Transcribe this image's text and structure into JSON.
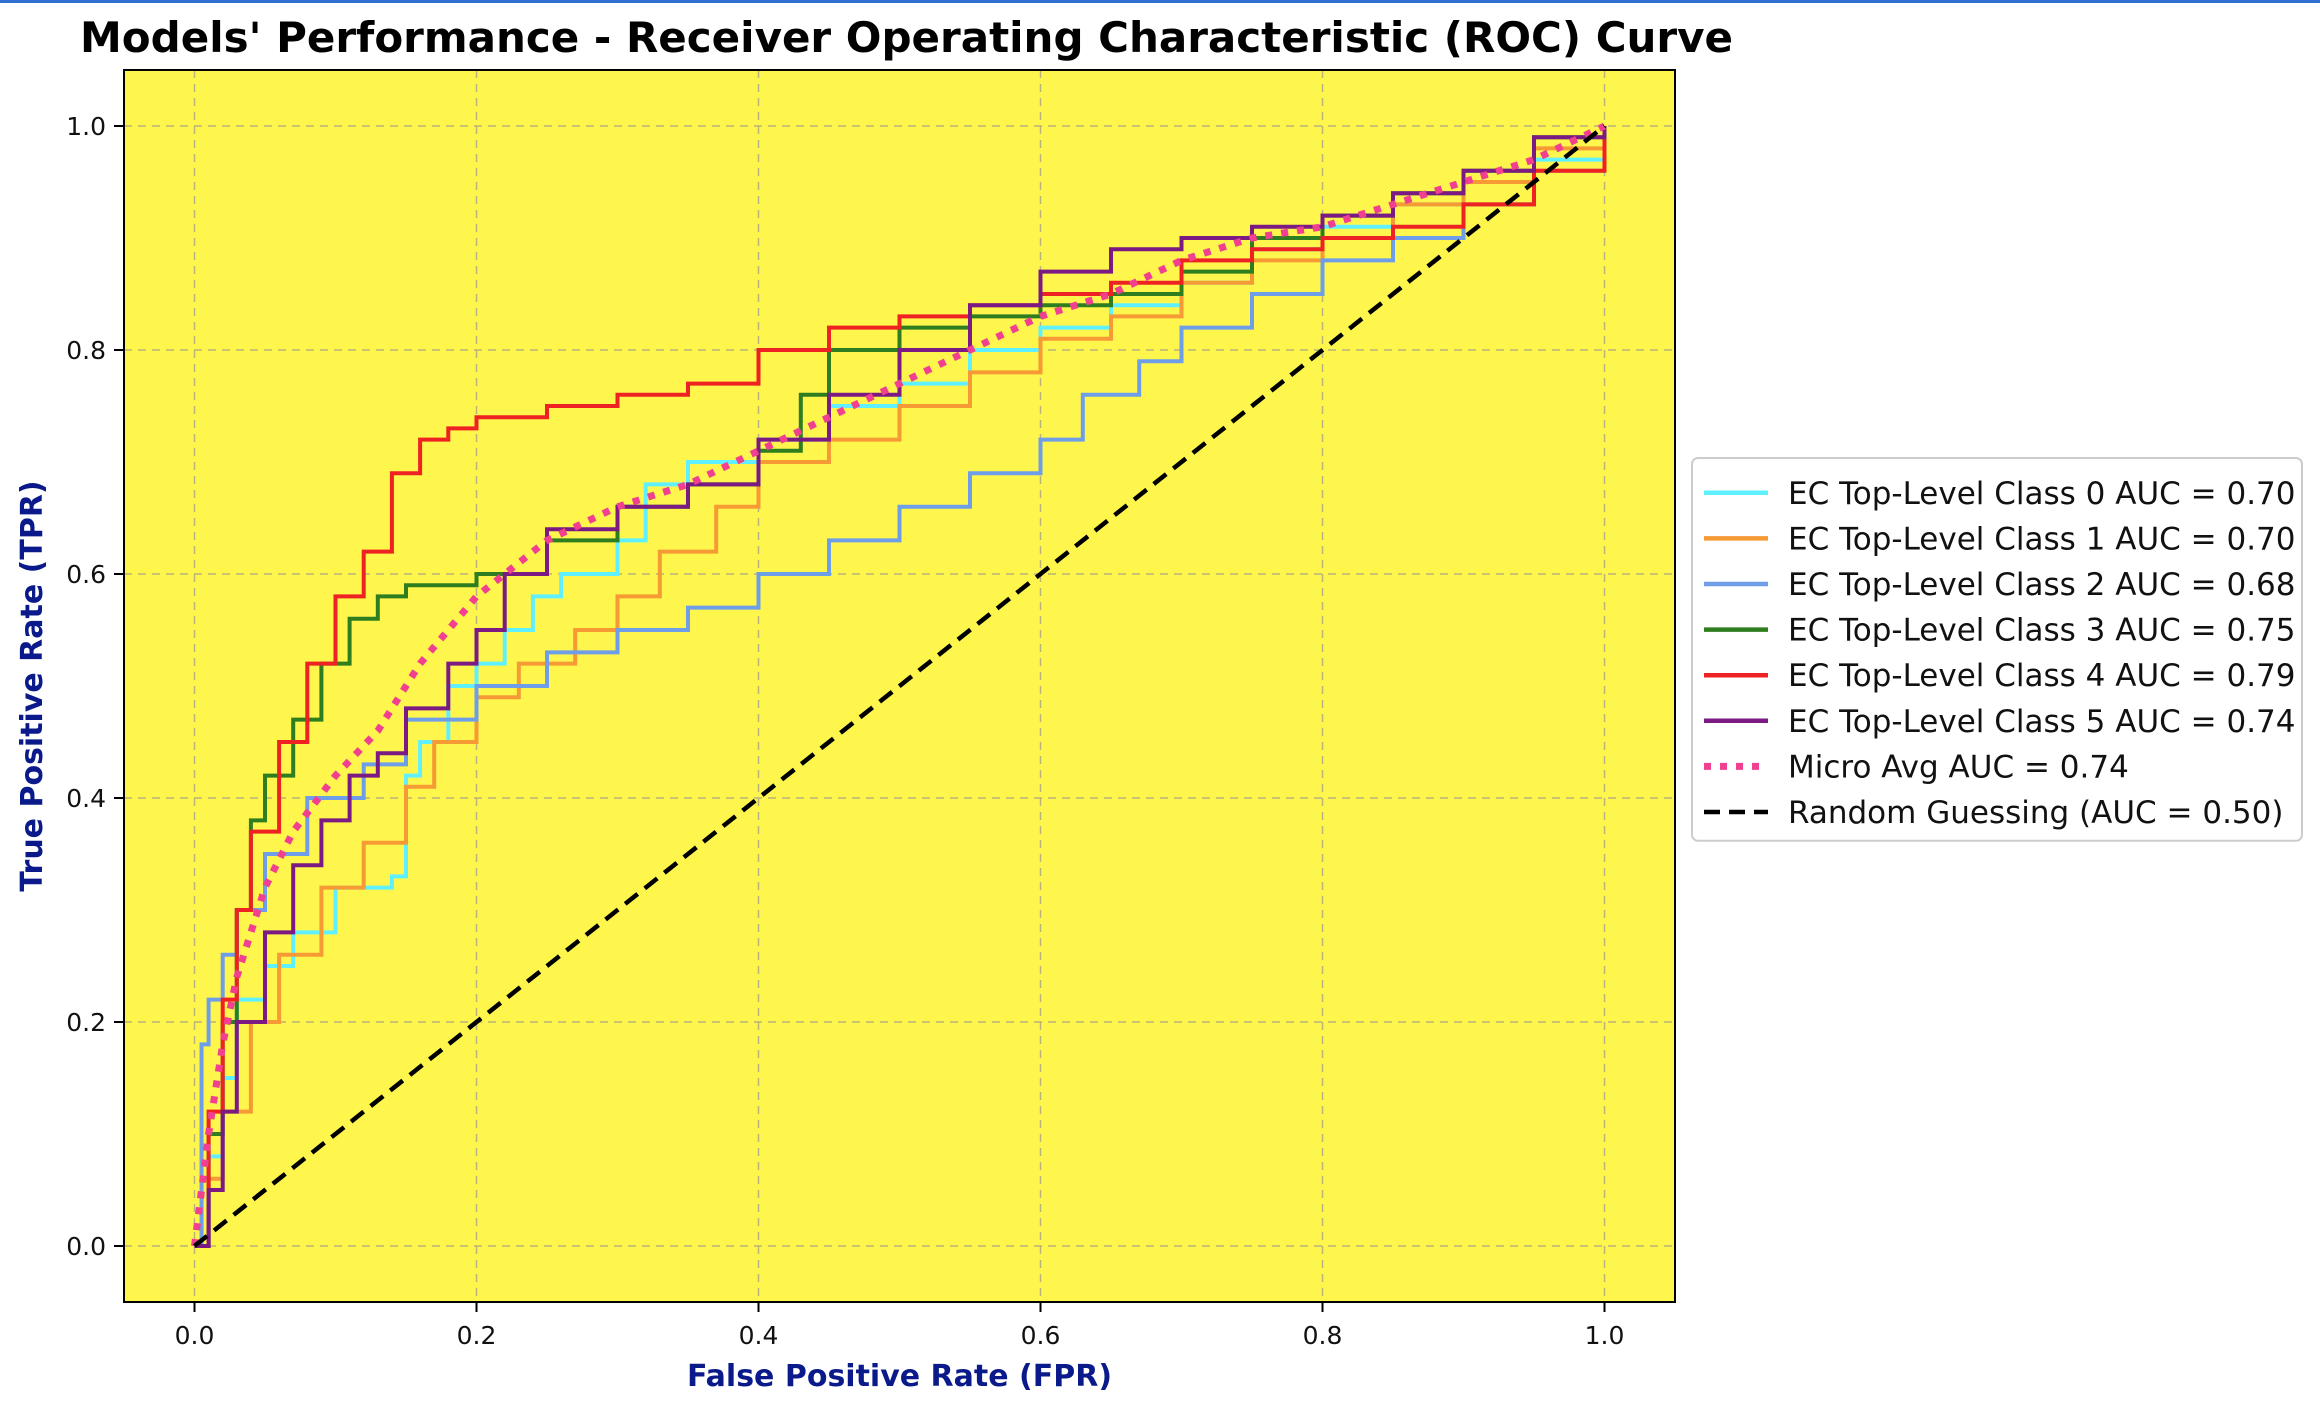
{
  "chart_data": {
    "type": "line",
    "title": "Models' Performance - Receiver Operating Characteristic (ROC) Curve",
    "xlabel": "False Positive Rate (FPR)",
    "ylabel": "True Positive Rate (TPR)",
    "xlim": [
      -0.05,
      1.05
    ],
    "ylim": [
      -0.05,
      1.05
    ],
    "xticks": [
      {
        "value": 0.0,
        "label": "0.0"
      },
      {
        "value": 0.2,
        "label": "0.2"
      },
      {
        "value": 0.4,
        "label": "0.4"
      },
      {
        "value": 0.6,
        "label": "0.6"
      },
      {
        "value": 0.8,
        "label": "0.8"
      },
      {
        "value": 1.0,
        "label": "1.0"
      }
    ],
    "yticks": [
      {
        "value": 0.0,
        "label": "0.0"
      },
      {
        "value": 0.2,
        "label": "0.2"
      },
      {
        "value": 0.4,
        "label": "0.4"
      },
      {
        "value": 0.6,
        "label": "0.6"
      },
      {
        "value": 0.8,
        "label": "0.8"
      },
      {
        "value": 1.0,
        "label": "1.0"
      }
    ],
    "grid": true,
    "legend_position": "outside-right",
    "plot_background": "#fff64d",
    "series": [
      {
        "name": "EC Top-Level Class 0 AUC = 0.70",
        "color": "#5ff0ff",
        "dash": "solid",
        "step": true,
        "x": [
          0.0,
          0.01,
          0.02,
          0.03,
          0.05,
          0.07,
          0.1,
          0.14,
          0.15,
          0.16,
          0.18,
          0.2,
          0.22,
          0.24,
          0.26,
          0.3,
          0.32,
          0.35,
          0.4,
          0.45,
          0.5,
          0.55,
          0.6,
          0.65,
          0.7,
          0.75,
          0.8,
          0.85,
          0.9,
          0.95,
          1.0
        ],
        "y": [
          0.0,
          0.08,
          0.15,
          0.22,
          0.25,
          0.28,
          0.32,
          0.33,
          0.42,
          0.45,
          0.5,
          0.52,
          0.55,
          0.58,
          0.6,
          0.63,
          0.68,
          0.7,
          0.72,
          0.75,
          0.77,
          0.8,
          0.82,
          0.84,
          0.86,
          0.89,
          0.91,
          0.93,
          0.95,
          0.97,
          1.0
        ]
      },
      {
        "name": "EC Top-Level Class 1 AUC = 0.70",
        "color": "#f59a34",
        "dash": "solid",
        "step": true,
        "x": [
          0.0,
          0.01,
          0.02,
          0.04,
          0.06,
          0.09,
          0.12,
          0.15,
          0.17,
          0.2,
          0.23,
          0.27,
          0.3,
          0.33,
          0.37,
          0.4,
          0.45,
          0.5,
          0.55,
          0.6,
          0.65,
          0.7,
          0.75,
          0.8,
          0.85,
          0.9,
          0.95,
          1.0
        ],
        "y": [
          0.0,
          0.06,
          0.12,
          0.2,
          0.26,
          0.32,
          0.36,
          0.41,
          0.45,
          0.49,
          0.52,
          0.55,
          0.58,
          0.62,
          0.66,
          0.7,
          0.72,
          0.75,
          0.78,
          0.81,
          0.83,
          0.86,
          0.88,
          0.9,
          0.93,
          0.95,
          0.98,
          1.0
        ]
      },
      {
        "name": "EC Top-Level Class 2 AUC = 0.68",
        "color": "#6f9ee8",
        "dash": "solid",
        "step": true,
        "x": [
          0.0,
          0.005,
          0.01,
          0.02,
          0.03,
          0.05,
          0.08,
          0.12,
          0.15,
          0.2,
          0.25,
          0.3,
          0.35,
          0.4,
          0.45,
          0.5,
          0.55,
          0.6,
          0.63,
          0.67,
          0.7,
          0.75,
          0.8,
          0.85,
          0.9,
          0.95,
          1.0
        ],
        "y": [
          0.0,
          0.18,
          0.22,
          0.26,
          0.3,
          0.35,
          0.4,
          0.43,
          0.47,
          0.5,
          0.53,
          0.55,
          0.57,
          0.6,
          0.63,
          0.66,
          0.69,
          0.72,
          0.76,
          0.79,
          0.82,
          0.85,
          0.88,
          0.9,
          0.93,
          0.96,
          1.0
        ]
      },
      {
        "name": "EC Top-Level Class 3 AUC = 0.75",
        "color": "#2e7d1f",
        "dash": "solid",
        "step": true,
        "x": [
          0.0,
          0.01,
          0.02,
          0.03,
          0.04,
          0.05,
          0.07,
          0.09,
          0.11,
          0.13,
          0.15,
          0.2,
          0.25,
          0.3,
          0.35,
          0.4,
          0.43,
          0.45,
          0.5,
          0.55,
          0.6,
          0.65,
          0.7,
          0.75,
          0.8,
          0.85,
          0.9,
          0.95,
          1.0
        ],
        "y": [
          0.0,
          0.1,
          0.2,
          0.3,
          0.38,
          0.42,
          0.47,
          0.52,
          0.56,
          0.58,
          0.59,
          0.6,
          0.63,
          0.66,
          0.68,
          0.71,
          0.76,
          0.8,
          0.82,
          0.83,
          0.84,
          0.85,
          0.87,
          0.9,
          0.92,
          0.94,
          0.96,
          0.99,
          1.0
        ]
      },
      {
        "name": "EC Top-Level Class 4 AUC = 0.79",
        "color": "#ee2222",
        "dash": "solid",
        "step": true,
        "x": [
          0.0,
          0.01,
          0.02,
          0.03,
          0.04,
          0.06,
          0.08,
          0.1,
          0.12,
          0.14,
          0.16,
          0.18,
          0.2,
          0.25,
          0.3,
          0.35,
          0.4,
          0.45,
          0.5,
          0.55,
          0.6,
          0.65,
          0.7,
          0.75,
          0.8,
          0.85,
          0.9,
          0.95,
          1.0
        ],
        "y": [
          0.0,
          0.12,
          0.22,
          0.3,
          0.37,
          0.45,
          0.52,
          0.58,
          0.62,
          0.69,
          0.72,
          0.73,
          0.74,
          0.75,
          0.76,
          0.77,
          0.8,
          0.82,
          0.83,
          0.84,
          0.85,
          0.86,
          0.88,
          0.89,
          0.9,
          0.91,
          0.93,
          0.96,
          1.0
        ]
      },
      {
        "name": "EC Top-Level Class 5 AUC = 0.74",
        "color": "#7b1a82",
        "dash": "solid",
        "step": true,
        "x": [
          0.0,
          0.01,
          0.02,
          0.03,
          0.05,
          0.07,
          0.09,
          0.11,
          0.13,
          0.15,
          0.18,
          0.2,
          0.22,
          0.25,
          0.3,
          0.35,
          0.4,
          0.45,
          0.5,
          0.55,
          0.6,
          0.65,
          0.7,
          0.75,
          0.8,
          0.85,
          0.9,
          0.95,
          1.0
        ],
        "y": [
          0.0,
          0.05,
          0.12,
          0.2,
          0.28,
          0.34,
          0.38,
          0.42,
          0.44,
          0.48,
          0.52,
          0.55,
          0.6,
          0.64,
          0.66,
          0.68,
          0.72,
          0.76,
          0.8,
          0.84,
          0.87,
          0.89,
          0.9,
          0.91,
          0.92,
          0.94,
          0.96,
          0.99,
          1.0
        ]
      },
      {
        "name": "Micro Avg AUC = 0.74",
        "color": "#f0408f",
        "dash": "dotted",
        "step": false,
        "x": [
          0.0,
          0.01,
          0.02,
          0.03,
          0.05,
          0.07,
          0.1,
          0.13,
          0.16,
          0.2,
          0.25,
          0.3,
          0.35,
          0.4,
          0.45,
          0.5,
          0.55,
          0.6,
          0.65,
          0.7,
          0.75,
          0.8,
          0.85,
          0.9,
          0.95,
          1.0
        ],
        "y": [
          0.0,
          0.1,
          0.18,
          0.24,
          0.32,
          0.37,
          0.42,
          0.46,
          0.52,
          0.58,
          0.63,
          0.66,
          0.68,
          0.71,
          0.74,
          0.77,
          0.8,
          0.83,
          0.85,
          0.88,
          0.9,
          0.91,
          0.93,
          0.95,
          0.97,
          1.0
        ]
      },
      {
        "name": "Random Guessing (AUC = 0.50)",
        "color": "#000000",
        "dash": "dashed",
        "step": false,
        "x": [
          0.0,
          1.0
        ],
        "y": [
          0.0,
          1.0
        ]
      }
    ]
  }
}
